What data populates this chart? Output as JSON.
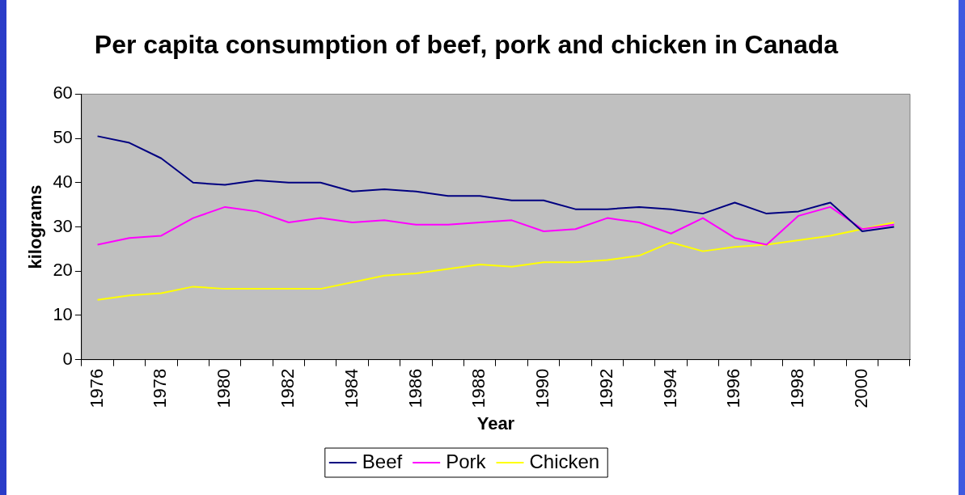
{
  "chart_data": {
    "type": "line",
    "title": "Per capita consumption of beef, pork and chicken in Canada",
    "xlabel": "Year",
    "ylabel": "kilograms",
    "categories": [
      "1976",
      null,
      "1978",
      null,
      "1980",
      null,
      "1982",
      null,
      "1984",
      null,
      "1986",
      null,
      "1988",
      null,
      "1990",
      null,
      "1992",
      null,
      "1994",
      null,
      "1996",
      null,
      "1998",
      null,
      "2000",
      null
    ],
    "series": [
      {
        "name": "Beef",
        "color": "#000080",
        "values": [
          50.5,
          49,
          45.5,
          40,
          39.5,
          40.5,
          40,
          40,
          38,
          38.5,
          38,
          37,
          37,
          36,
          36,
          34,
          34,
          34.5,
          34,
          33,
          35.5,
          33,
          33.5,
          35.5,
          29,
          30
        ]
      },
      {
        "name": "Pork",
        "color": "#ff00ff",
        "values": [
          26,
          27.5,
          28,
          32,
          34.5,
          33.5,
          31,
          32,
          31,
          31.5,
          30.5,
          30.5,
          31,
          31.5,
          29,
          29.5,
          32,
          31,
          28.5,
          32,
          27.5,
          26,
          32.5,
          34.5,
          29.5,
          30.5
        ]
      },
      {
        "name": "Chicken",
        "color": "#ffff00",
        "values": [
          13.5,
          14.5,
          15,
          16.5,
          16,
          16,
          16,
          16,
          17.5,
          19,
          19.5,
          20.5,
          21.5,
          21,
          22,
          22,
          22.5,
          23.5,
          26.5,
          24.5,
          25.5,
          26,
          27,
          28,
          29.5,
          31
        ]
      }
    ],
    "ylim": [
      0,
      60
    ],
    "yticks": [
      0,
      10,
      20,
      30,
      40,
      50,
      60
    ],
    "grid": false,
    "legend": "bottom",
    "marker": "none",
    "line_style": "solid"
  }
}
